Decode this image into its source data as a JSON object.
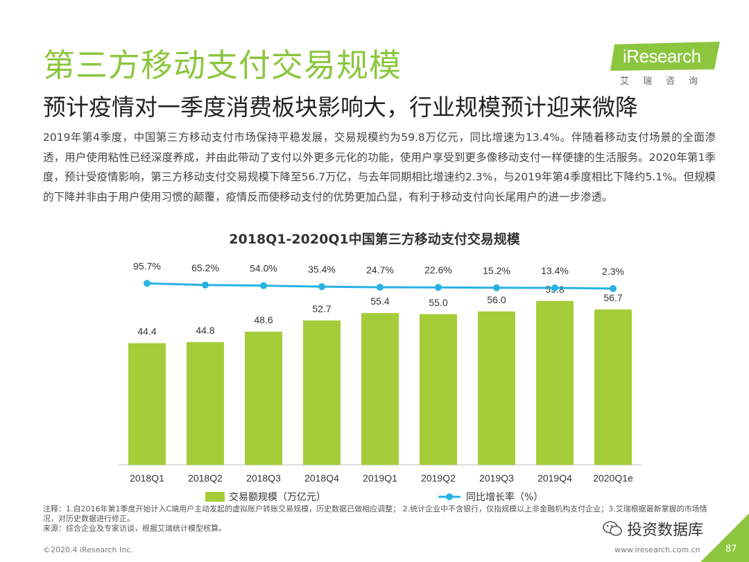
{
  "header": {
    "title": "第三方移动支付交易规模",
    "subtitle": "预计疫情对一季度消费板块影响大，行业规模预计迎来微降",
    "logo_text": "iResearch",
    "logo_sub": "艾瑞咨询"
  },
  "body": {
    "paragraph": "2019年第4季度，中国第三方移动支付市场保持平稳发展，交易规模约为59.8万亿元，同比增速为13.4%。伴随着移动支付场景的全面渗透，用户使用粘性已经深度养成，并由此带动了支付以外更多元化的功能，使用户享受到更多像移动支付一样便捷的生活服务。2020年第1季度，预计受疫情影响，第三方移动支付交易规模下降至56.7万亿，与去年同期相比增速约2.3%，与2019年第4季度相比下降约5.1%。但规模的下降并非由于用户使用习惯的颠覆，疫情反而使移动支付的优势更加凸显，有利于移动支付向长尾用户的进一步渗透。"
  },
  "chart_data": {
    "type": "bar+line",
    "title": "2018Q1-2020Q1中国第三方移动支付交易规模",
    "categories": [
      "2018Q1",
      "2018Q2",
      "2018Q3",
      "2018Q4",
      "2019Q1",
      "2019Q2",
      "2019Q3",
      "2019Q4",
      "2020Q1e"
    ],
    "series": [
      {
        "name": "交易额规模（万亿元）",
        "type": "bar",
        "color": "#a5cd39",
        "values": [
          44.4,
          44.8,
          48.6,
          52.7,
          55.4,
          55.0,
          56.0,
          59.8,
          56.7
        ],
        "labels": [
          "44.4",
          "44.8",
          "48.6",
          "52.7",
          "55.4",
          "55.0",
          "56.0",
          "59.8",
          "56.7"
        ]
      },
      {
        "name": "同比增长率（%）",
        "type": "line",
        "color": "#28b2e4",
        "values": [
          95.7,
          65.2,
          54.0,
          35.4,
          24.7,
          22.6,
          15.2,
          13.4,
          2.3
        ],
        "labels": [
          "95.7%",
          "65.2%",
          "54.0%",
          "35.4%",
          "24.7%",
          "22.6%",
          "15.2%",
          "13.4%",
          "2.3%"
        ]
      }
    ],
    "legend": "bottom"
  },
  "notes": {
    "line1": "注释：1.自2016年第1季度开始计入C端用户主动发起的虚拟账户转账交易规模，历史数据已做相应调整；  2.统计企业中不含银行，仅指规模以上非金融机构支付企业；3.艾瑞根据最新掌握的市场情况，对历史数据进行修正。",
    "line2": "来源：综合企业及专家访谈，根据艾瑞统计模型核算。"
  },
  "footer": {
    "copyright": "©2020.4 iResearch Inc.",
    "url": "www.iresearch.com.cn",
    "page": "87",
    "watermark": "投资数据库"
  },
  "colors": {
    "brand_green": "#8cc63f",
    "bar": "#a5cd39",
    "line": "#28b2e4"
  }
}
